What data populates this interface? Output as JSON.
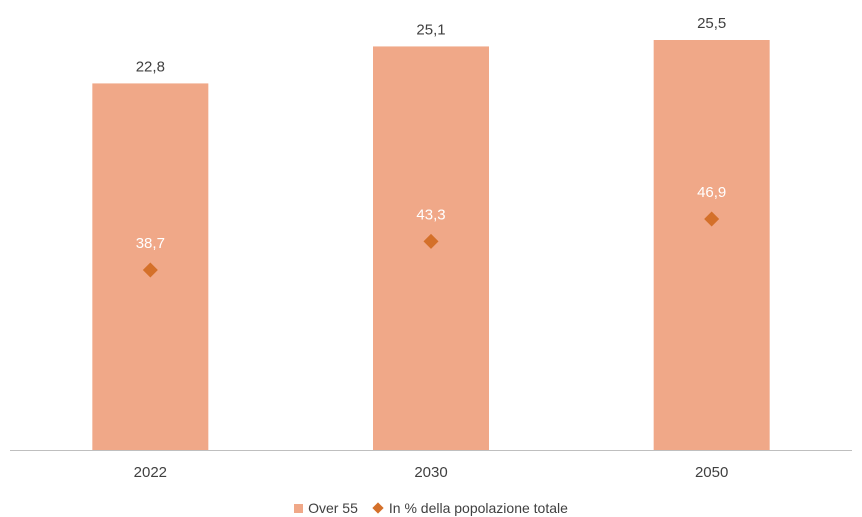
{
  "chart_data": {
    "type": "bar",
    "categories": [
      "2022",
      "2030",
      "2050"
    ],
    "series": [
      {
        "name": "Over 55",
        "type": "bar",
        "values": [
          22.8,
          25.1,
          25.5
        ],
        "labels": [
          "22,8",
          "25,1",
          "25,5"
        ],
        "color": "#F0A888"
      },
      {
        "name": "In % della popolazione totale",
        "type": "marker",
        "values": [
          38.7,
          43.3,
          46.9
        ],
        "labels": [
          "38,7",
          "43,3",
          "46,9"
        ],
        "color": "#D4702A"
      }
    ],
    "colors": {
      "axis": "#BFBFBF",
      "text": "#404040",
      "inner_label": "#FFFFFF"
    },
    "legend_position": "bottom"
  }
}
